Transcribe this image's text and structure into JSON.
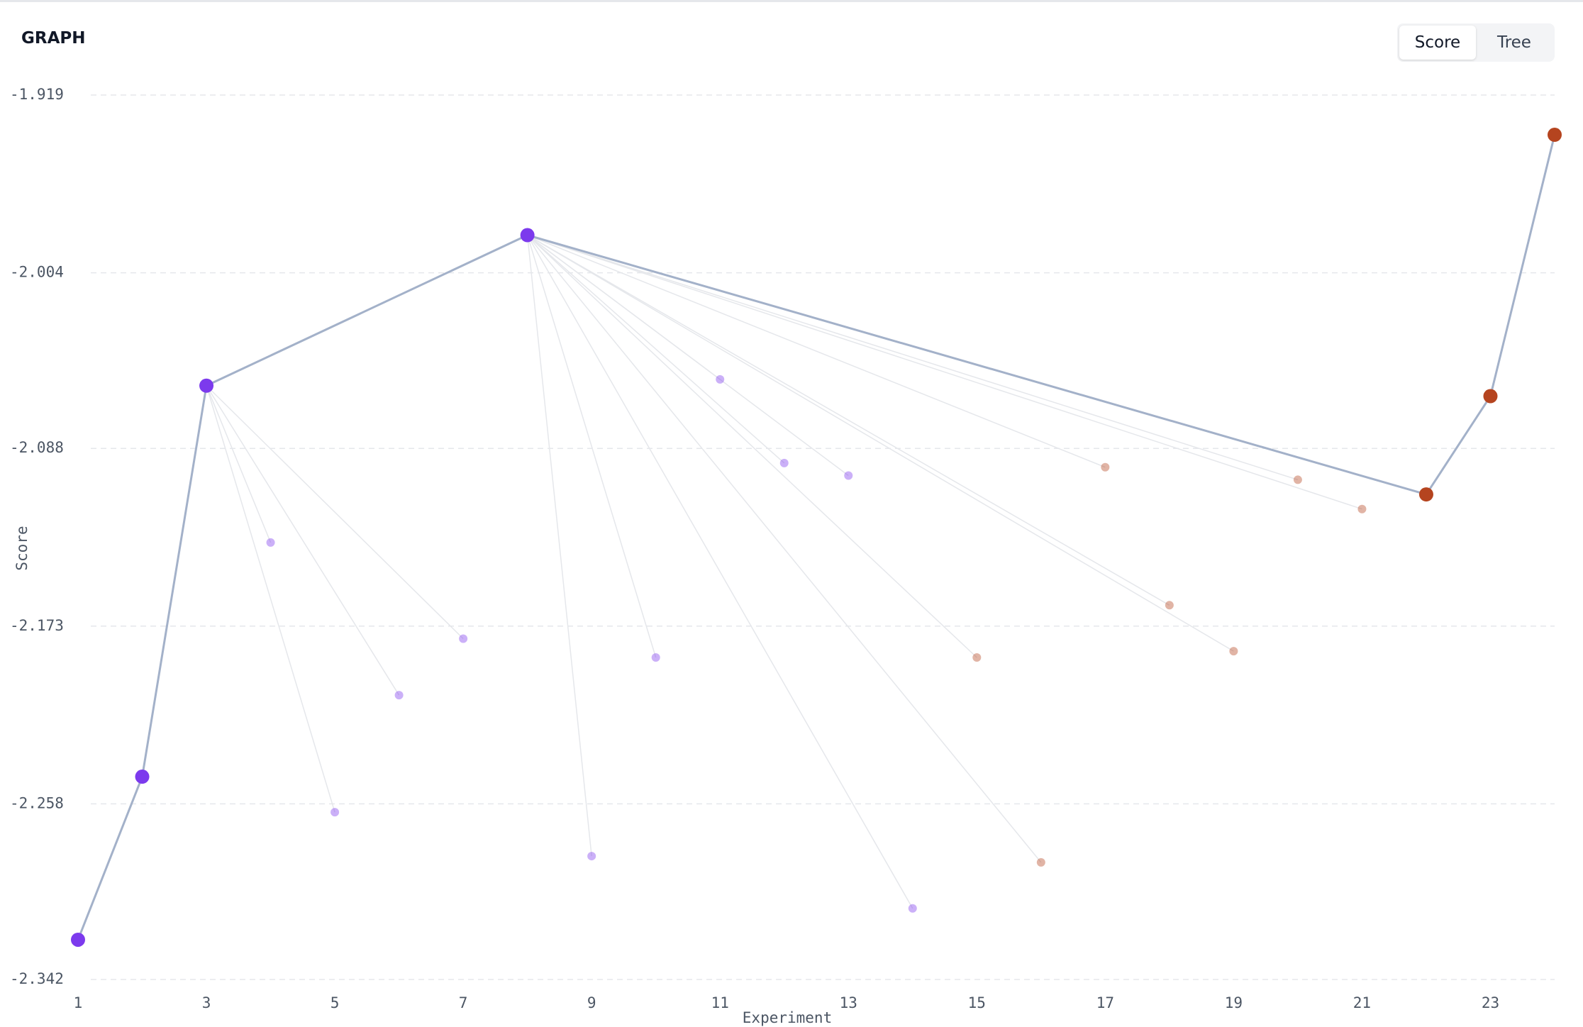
{
  "panel": {
    "title": "GRAPH",
    "options": [
      "Score",
      "Tree"
    ]
  },
  "chart_data": {
    "type": "scatter",
    "xlabel": "Experiment",
    "ylabel": "Score",
    "x": [
      1,
      2,
      3,
      4,
      5,
      6,
      7,
      8,
      9,
      10,
      11,
      12,
      13,
      14,
      15,
      16,
      17,
      18,
      19,
      20,
      21,
      22,
      23,
      24
    ],
    "values": [
      -2.323,
      -2.245,
      -2.058,
      -2.133,
      -2.262,
      -2.206,
      -2.179,
      -1.986,
      -2.283,
      -2.188,
      -2.055,
      -2.095,
      -2.101,
      -2.308,
      -2.188,
      -2.286,
      -2.097,
      -2.163,
      -2.185,
      -2.103,
      -2.117,
      -2.11,
      -2.063,
      -1.938
    ],
    "parents": [
      null,
      1,
      2,
      3,
      3,
      3,
      3,
      3,
      8,
      8,
      8,
      8,
      8,
      8,
      8,
      8,
      8,
      8,
      8,
      8,
      8,
      8,
      22,
      23
    ],
    "highlighted": [
      true,
      true,
      true,
      false,
      false,
      false,
      false,
      true,
      false,
      false,
      false,
      false,
      false,
      false,
      false,
      false,
      false,
      false,
      false,
      false,
      false,
      true,
      true,
      true
    ],
    "colors": [
      "#7c3aed",
      "#7c3aed",
      "#7c3aed",
      "#7c3aed",
      "#7c3aed",
      "#7c3aed",
      "#7c3aed",
      "#7c3aed",
      "#7c3aed",
      "#7c3aed",
      "#7c3aed",
      "#7c3aed",
      "#7c3aed",
      "#7c3aed",
      "#b5441f",
      "#b5441f",
      "#b5441f",
      "#b5441f",
      "#b5441f",
      "#b5441f",
      "#b5441f",
      "#b5441f",
      "#b5441f",
      "#b5441f"
    ],
    "xlim": [
      1,
      24
    ],
    "xticks": [
      1,
      3,
      5,
      7,
      9,
      11,
      13,
      15,
      17,
      19,
      21,
      23
    ],
    "ylim": [
      -2.342,
      -1.919
    ],
    "yticks": [
      -1.919,
      -2.004,
      -2.088,
      -2.173,
      -2.258,
      -2.342
    ],
    "grid": true
  }
}
